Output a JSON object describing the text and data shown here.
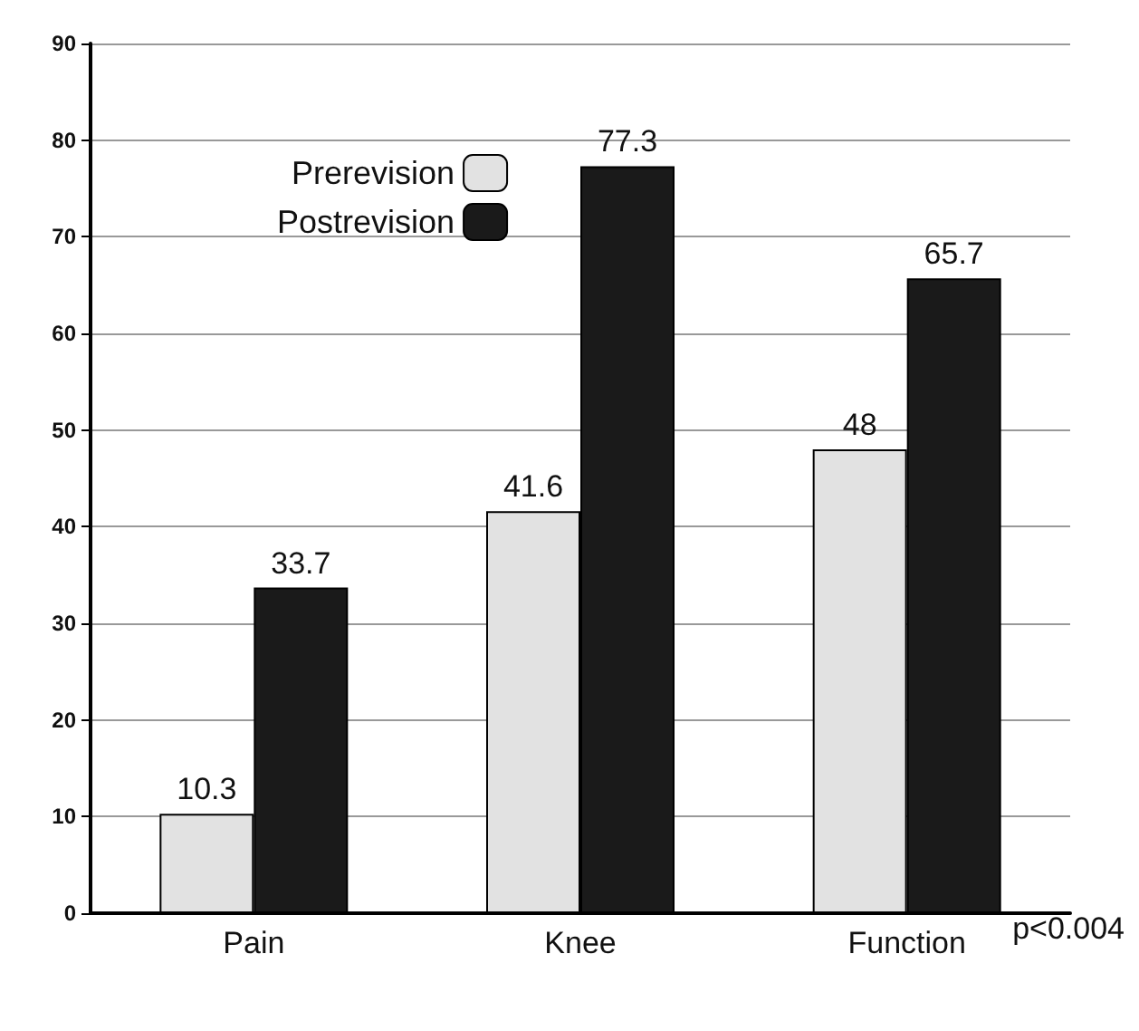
{
  "chart_data": {
    "type": "bar",
    "categories": [
      "Pain",
      "Knee",
      "Function"
    ],
    "series": [
      {
        "name": "Prerevision",
        "color": "#e2e2e2",
        "values": [
          10.3,
          41.6,
          48
        ]
      },
      {
        "name": "Postrevision",
        "color": "#1a1a1a",
        "values": [
          33.7,
          77.3,
          65.7
        ]
      }
    ],
    "ylim": [
      0,
      90
    ],
    "yticks": [
      0,
      10,
      20,
      30,
      40,
      50,
      60,
      70,
      80,
      90
    ],
    "grid": "y",
    "legend": "top left",
    "data_labels": true,
    "annotations": [
      "p<0.004"
    ]
  }
}
